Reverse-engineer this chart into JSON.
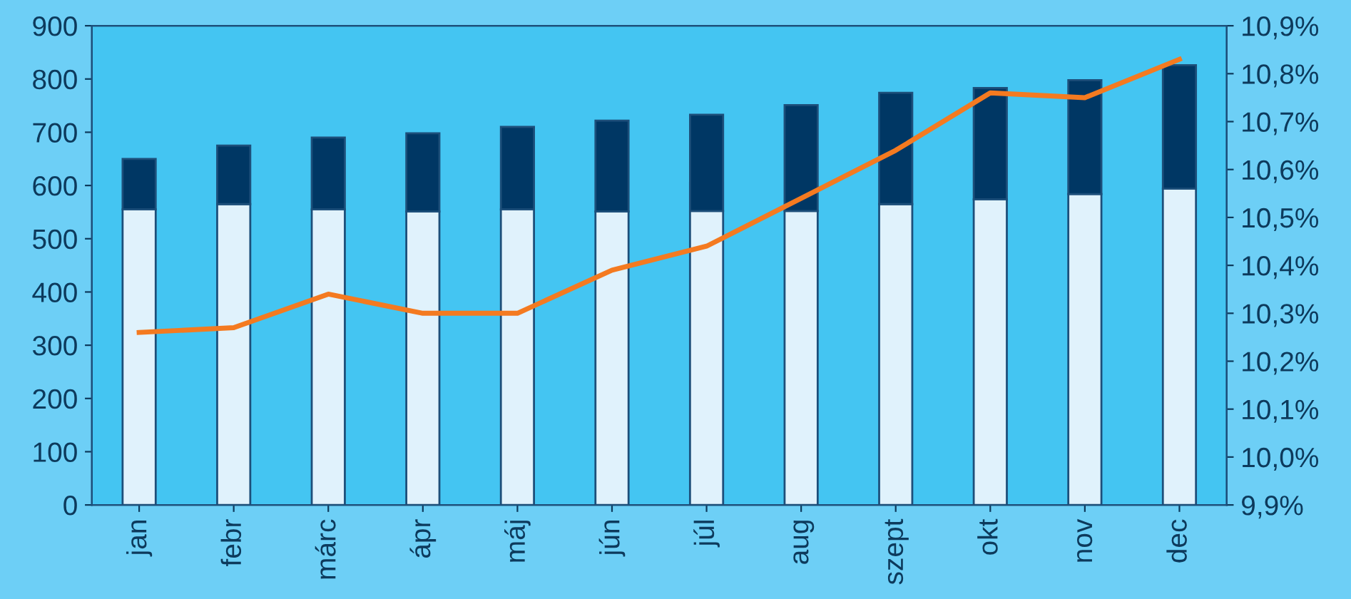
{
  "chart_data": {
    "type": "bar",
    "stacked": true,
    "categories": [
      "jan",
      "febr",
      "márc",
      "ápr",
      "máj",
      "jún",
      "júl",
      "aug",
      "szept",
      "okt",
      "nov",
      "dec"
    ],
    "series": [
      {
        "color": "#e0f2fc",
        "values": [
          555,
          565,
          555,
          551,
          555,
          551,
          552,
          552,
          565,
          574,
          584,
          594
        ]
      },
      {
        "color": "#003764",
        "values": [
          95,
          110,
          135,
          147,
          155,
          171,
          181,
          199,
          209,
          209,
          214,
          232
        ]
      },
      {
        "type": "line",
        "axis": "y2",
        "color": "#f47a20",
        "values": [
          10.26,
          10.27,
          10.34,
          10.3,
          10.3,
          10.39,
          10.44,
          10.54,
          10.64,
          10.76,
          10.75,
          10.83
        ]
      }
    ],
    "ylim": [
      0,
      900
    ],
    "yticks": [
      0,
      100,
      200,
      300,
      400,
      500,
      600,
      700,
      800,
      900
    ],
    "y2lim": [
      9.9,
      10.9
    ],
    "y2ticks": [
      {
        "value": 9.9,
        "label": "9,9%"
      },
      {
        "value": 10.0,
        "label": "10,0%"
      },
      {
        "value": 10.1,
        "label": "10,1%"
      },
      {
        "value": 10.2,
        "label": "10,2%"
      },
      {
        "value": 10.3,
        "label": "10,3%"
      },
      {
        "value": 10.4,
        "label": "10,4%"
      },
      {
        "value": 10.5,
        "label": "10,5%"
      },
      {
        "value": 10.6,
        "label": "10,6%"
      },
      {
        "value": 10.7,
        "label": "10,7%"
      },
      {
        "value": 10.8,
        "label": "10,8%"
      },
      {
        "value": 10.9,
        "label": "10,9%"
      }
    ],
    "grid": false,
    "legend": false,
    "marker": "none",
    "line_style": "solid"
  }
}
